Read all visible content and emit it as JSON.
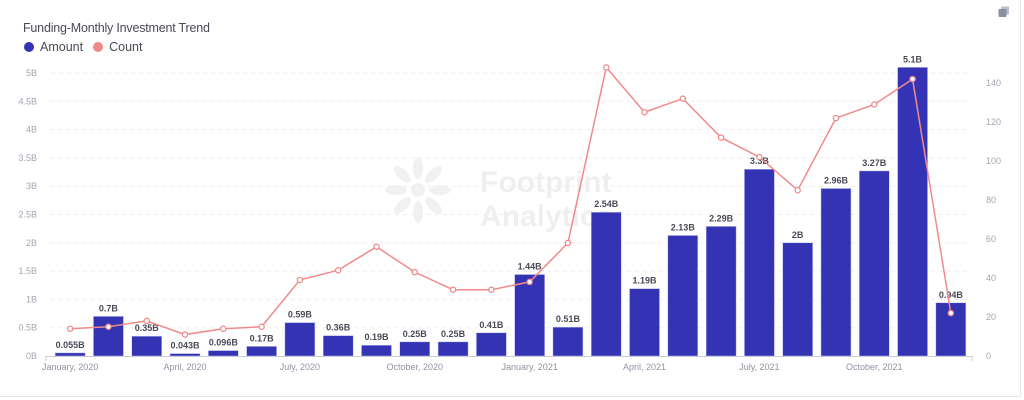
{
  "header": {
    "title": "Funding-Monthly Investment Trend",
    "copy_icon": "copy-icon"
  },
  "legend": [
    {
      "label": "Amount",
      "color": "#3333b3"
    },
    {
      "label": "Count",
      "color": "#f08a8a"
    }
  ],
  "watermark": {
    "line1": "Footprint",
    "line2": "Analytics"
  },
  "colors": {
    "bar": "#3333b3",
    "line": "#f08a8a",
    "grid": "#eeeeee",
    "axis_text": "#a3a6b4"
  },
  "chart_data": {
    "type": "bar+line",
    "title": "Funding-Monthly Investment Trend",
    "categories": [
      "Jan 2020",
      "Feb 2020",
      "Mar 2020",
      "Apr 2020",
      "May 2020",
      "Jun 2020",
      "Jul 2020",
      "Aug 2020",
      "Sep 2020",
      "Oct 2020",
      "Nov 2020",
      "Dec 2020",
      "Jan 2021",
      "Feb 2021",
      "Mar 2021",
      "Apr 2021",
      "May 2021",
      "Jun 2021",
      "Jul 2021",
      "Aug 2021",
      "Sep 2021",
      "Oct 2021",
      "Nov 2021",
      "Dec 2021"
    ],
    "x_tick_labels": [
      {
        "index": 0,
        "label": "January, 2020"
      },
      {
        "index": 3,
        "label": "April, 2020"
      },
      {
        "index": 6,
        "label": "July, 2020"
      },
      {
        "index": 9,
        "label": "October, 2020"
      },
      {
        "index": 12,
        "label": "January, 2021"
      },
      {
        "index": 15,
        "label": "April, 2021"
      },
      {
        "index": 18,
        "label": "July, 2021"
      },
      {
        "index": 21,
        "label": "October, 2021"
      }
    ],
    "series": [
      {
        "name": "Amount",
        "type": "bar",
        "axis": "left",
        "unit": "B",
        "values": [
          0.055,
          0.7,
          0.35,
          0.043,
          0.096,
          0.17,
          0.59,
          0.36,
          0.19,
          0.25,
          0.25,
          0.41,
          1.44,
          0.51,
          2.54,
          1.19,
          2.13,
          2.29,
          3.3,
          2,
          2.96,
          3.27,
          5.1,
          0.94
        ],
        "labels": [
          "0.055B",
          "0.7B",
          "0.35B",
          "0.043B",
          "0.096B",
          "0.17B",
          "0.59B",
          "0.36B",
          "0.19B",
          "0.25B",
          "0.25B",
          "0.41B",
          "1.44B",
          "0.51B",
          "2.54B",
          "1.19B",
          "2.13B",
          "2.29B",
          "3.3B",
          "2B",
          "2.96B",
          "3.27B",
          "5.1B",
          "0.94B"
        ]
      },
      {
        "name": "Count",
        "type": "line",
        "axis": "right",
        "values": [
          14,
          15,
          18,
          11,
          14,
          15,
          39,
          44,
          56,
          43,
          34,
          34,
          38,
          58,
          148,
          125,
          132,
          112,
          102,
          85,
          122,
          129,
          142,
          22
        ]
      }
    ],
    "y_left": {
      "ticks": [
        "0B",
        "0.5B",
        "1B",
        "1.5B",
        "2B",
        "2.5B",
        "3B",
        "3.5B",
        "4B",
        "4.5B",
        "5B"
      ],
      "range": [
        0,
        5
      ]
    },
    "y_right": {
      "ticks": [
        "0",
        "20",
        "40",
        "60",
        "80",
        "100",
        "120",
        "140"
      ],
      "range": [
        0,
        140
      ]
    },
    "grid": true,
    "legend_position": "top-left",
    "xlabel": "",
    "ylabel": ""
  }
}
